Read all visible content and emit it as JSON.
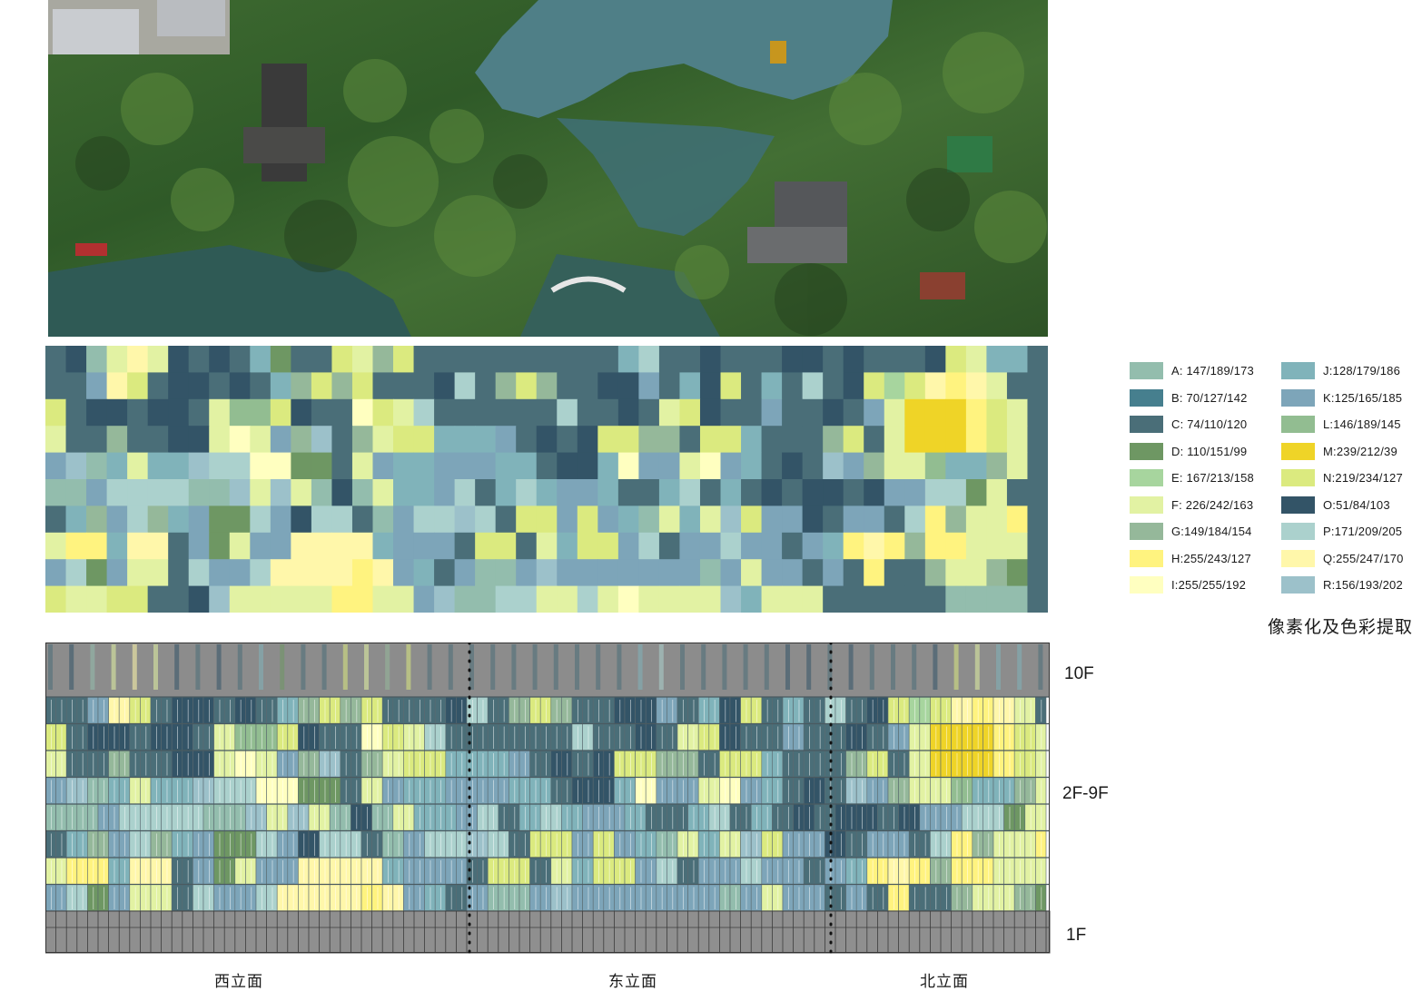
{
  "legend": {
    "items": [
      {
        "code": "A: 147/189/173",
        "color": "#93bdad"
      },
      {
        "code": "B:  70/127/142",
        "color": "#467f8e"
      },
      {
        "code": "C:  74/110/120",
        "color": "#4a6e78"
      },
      {
        "code": "D:  110/151/99",
        "color": "#6e9763"
      },
      {
        "code": "E:  167/213/158",
        "color": "#a7d59e"
      },
      {
        "code": "F: 226/242/163",
        "color": "#e2f2a3"
      },
      {
        "code": "G:149/184/154",
        "color": "#95b89a"
      },
      {
        "code": "H:255/243/127",
        "color": "#fff37f"
      },
      {
        "code": "I:255/255/192",
        "color": "#ffffc0"
      },
      {
        "code": "J:128/179/186",
        "color": "#80b3ba"
      },
      {
        "code": "K:125/165/185",
        "color": "#7da5b9"
      },
      {
        "code": "L:146/189/145",
        "color": "#92bd91"
      },
      {
        "code": "M:239/212/39",
        "color": "#efd427"
      },
      {
        "code": "N:219/234/127",
        "color": "#dbea7f"
      },
      {
        "code": "O:51/84/103",
        "color": "#335467"
      },
      {
        "code": "P:171/209/205",
        "color": "#abd1cd"
      },
      {
        "code": "Q:255/247/170",
        "color": "#fff7aa"
      },
      {
        "code": "R:156/193/202",
        "color": "#9cc1ca"
      }
    ],
    "caption": "像素化及色彩提取"
  },
  "facade": {
    "floor_labels": {
      "top": "10F",
      "middle": "2F-9F",
      "bottom": "1F"
    },
    "elevations": [
      "西立面",
      "东立面",
      "北立面"
    ]
  }
}
